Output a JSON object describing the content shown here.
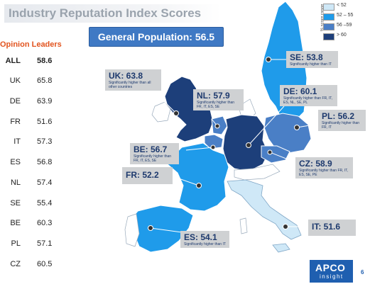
{
  "title": "Industry Reputation Index Scores",
  "general_population": "General Population: 56.5",
  "opinion_leaders": {
    "title": "Opinion Leaders",
    "rows": [
      {
        "country": "ALL",
        "score": "58.6"
      },
      {
        "country": "UK",
        "score": "65.8"
      },
      {
        "country": "DE",
        "score": "63.9"
      },
      {
        "country": "FR",
        "score": "51.6"
      },
      {
        "country": "IT",
        "score": "57.3"
      },
      {
        "country": "ES",
        "score": "56.8"
      },
      {
        "country": "NL",
        "score": "57.4"
      },
      {
        "country": "SE",
        "score": "55.4"
      },
      {
        "country": "BE",
        "score": "60.3"
      },
      {
        "country": "PL",
        "score": "57.1"
      },
      {
        "country": "CZ",
        "score": "60.5"
      }
    ]
  },
  "legend": {
    "range_label": "% score range",
    "items": [
      {
        "label": "< 52",
        "color": "#cfe8f7"
      },
      {
        "label": "52 – 55",
        "color": "#1f9bea"
      },
      {
        "label": "56 –59",
        "color": "#4a7fc6"
      },
      {
        "label": "> 60",
        "color": "#1d3f7a"
      }
    ]
  },
  "countries": {
    "UK": {
      "score": "UK: 63.8",
      "note": "Significantly higher than all other countries",
      "color": "#1d3f7a"
    },
    "NL": {
      "score": "NL: 57.9",
      "note": "Significantly higher than FR, IT, ES, SE",
      "color": "#4a7fc6"
    },
    "DE": {
      "score": "DE: 60.1",
      "note": "Significantly higher than FR, IT, ES, NL, SE, PL",
      "color": "#1d3f7a"
    },
    "SE": {
      "score": "SE: 53.8",
      "note": "Significantly higher than IT",
      "color": "#1f9bea"
    },
    "PL": {
      "score": "PL: 56.2",
      "note": "Significantly higher than FR, IT",
      "color": "#4a7fc6"
    },
    "BE": {
      "score": "BE: 56.7",
      "note": "Significantly higher than FR, IT, ES, SE",
      "color": "#4a7fc6"
    },
    "CZ": {
      "score": "CZ: 58.9",
      "note": "Significantly higher than FR, IT, ES, SE, PE",
      "color": "#4a7fc6"
    },
    "FR": {
      "score": "FR: 52.2",
      "note": "",
      "color": "#1f9bea"
    },
    "ES": {
      "score": "ES: 54.1",
      "note": "Significantly higher than IT",
      "color": "#1f9bea"
    },
    "IT": {
      "score": "IT: 51.6",
      "note": "",
      "color": "#cfe8f7"
    }
  },
  "logo": {
    "line1": "APCO",
    "line2": "insight"
  },
  "page_number": "6"
}
